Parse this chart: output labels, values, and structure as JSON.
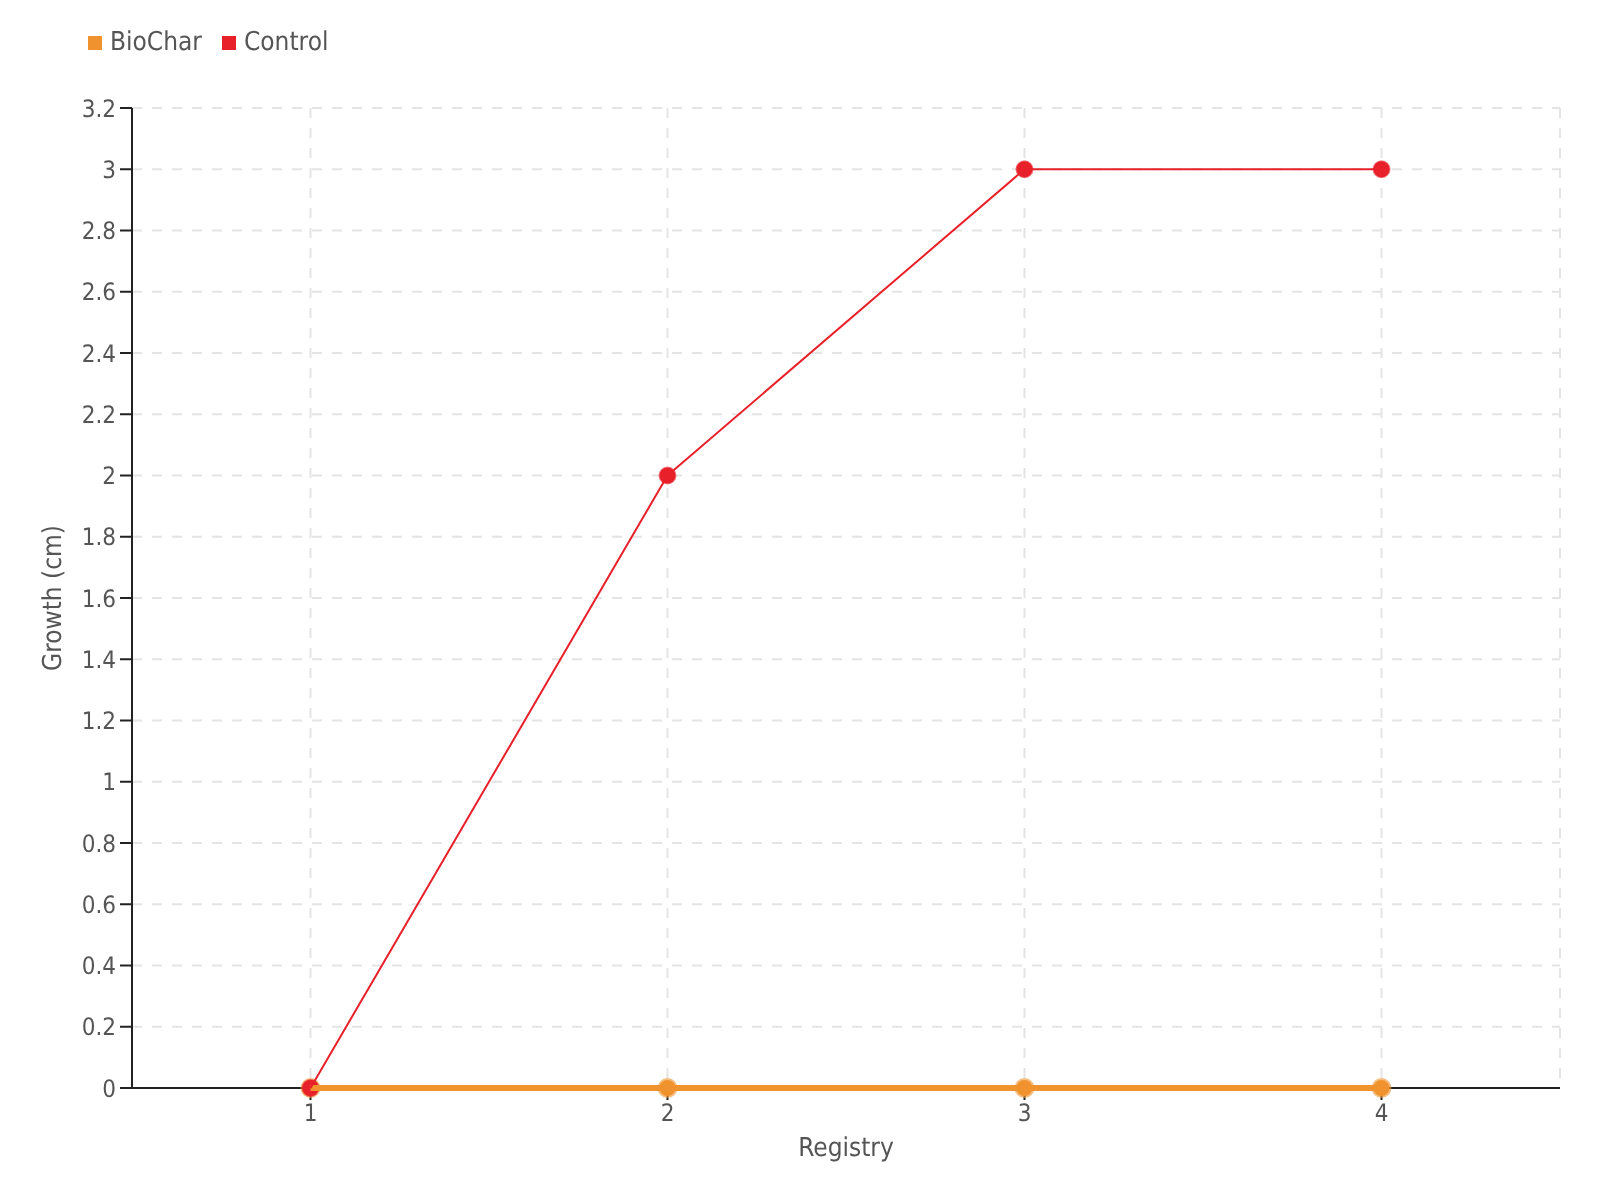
{
  "chart_data": {
    "type": "line",
    "xlabel": "Registry",
    "ylabel": "Growth (cm)",
    "x": [
      1,
      2,
      3,
      4
    ],
    "series": [
      {
        "name": "BioChar",
        "color": "#f0922e",
        "values": [
          0,
          0,
          0,
          0
        ]
      },
      {
        "name": "Control",
        "color": "#e8202a",
        "values": [
          0,
          2,
          3,
          3
        ]
      }
    ],
    "xlim": [
      0.5,
      4.5
    ],
    "xticks": [
      1,
      2,
      3,
      4
    ],
    "ylim": [
      0,
      3.2
    ],
    "yticks": [
      0,
      0.2,
      0.4,
      0.6,
      0.8,
      1,
      1.2,
      1.4,
      1.6,
      1.8,
      2,
      2.2,
      2.4,
      2.6,
      2.8,
      3,
      3.2
    ],
    "grid": true,
    "legend": "top left",
    "marker": "circle",
    "line_style": "solid"
  }
}
